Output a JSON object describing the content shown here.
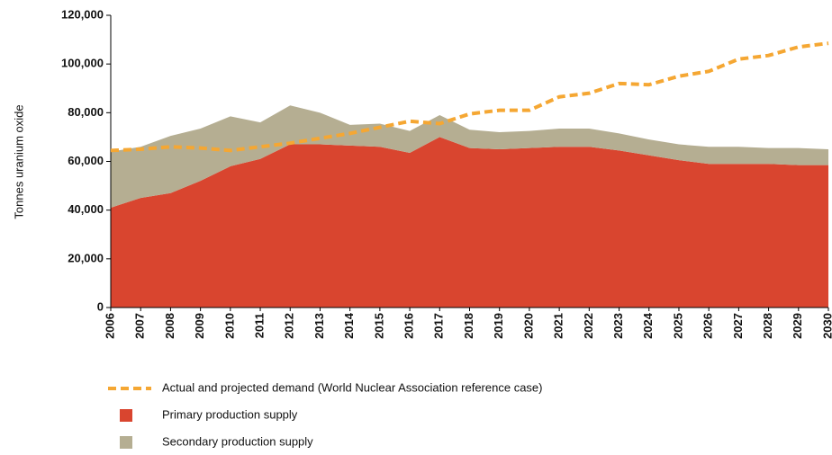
{
  "chart_data": {
    "type": "area",
    "y_axis_label": "Tonnes uranium oxide",
    "categories": [
      "2006",
      "2007",
      "2008",
      "2009",
      "2010",
      "2011",
      "2012",
      "2013",
      "2014",
      "2015",
      "2016",
      "2017",
      "2018",
      "2019",
      "2020",
      "2021",
      "2022",
      "2023",
      "2024",
      "2025",
      "2026",
      "2027",
      "2028",
      "2029",
      "2030"
    ],
    "series": [
      {
        "name": "Actual and projected demand (World Nuclear Association reference case)",
        "type": "line",
        "color": "#f5a733",
        "values": [
          64500,
          65000,
          66000,
          65500,
          64500,
          66000,
          67500,
          69500,
          71500,
          74000,
          76500,
          75500,
          79500,
          81000,
          81000,
          86500,
          88000,
          92000,
          91500,
          95000,
          97000,
          102000,
          103500,
          107000,
          108500
        ]
      },
      {
        "name": "Primary production supply",
        "type": "area",
        "color": "#d9452f",
        "values": [
          41000,
          45000,
          47000,
          52000,
          58000,
          61000,
          67000,
          67000,
          66500,
          66000,
          63500,
          70000,
          65500,
          65000,
          65500,
          66000,
          66000,
          64500,
          62500,
          60500,
          59000,
          59000,
          59000,
          58500,
          58500
        ]
      },
      {
        "name": "Secondary production supply",
        "type": "area",
        "color": "#b5ae92",
        "values": [
          23000,
          21000,
          23500,
          21500,
          20500,
          15000,
          16000,
          13000,
          8500,
          9500,
          9000,
          9000,
          7500,
          7000,
          7000,
          7500,
          7500,
          7000,
          6500,
          6500,
          7000,
          7000,
          6500,
          7000,
          6500
        ]
      }
    ],
    "ylim": [
      0,
      120000
    ],
    "yticks": [
      0,
      {
        "value": 20000,
        "label": "20,000"
      },
      {
        "value": 40000,
        "label": "40,000"
      },
      {
        "value": 60000,
        "label": "60,000"
      },
      {
        "value": 80000,
        "label": "80,000"
      },
      {
        "value": 100000,
        "label": "100,000"
      },
      {
        "value": 120000,
        "label": "120,000"
      }
    ]
  }
}
